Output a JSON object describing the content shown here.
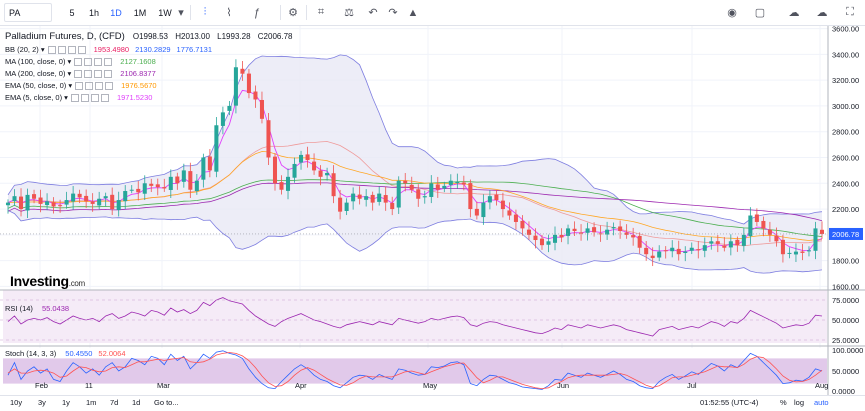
{
  "toolbar": {
    "symbol": "PA",
    "intervals": [
      "5",
      "1h",
      "1D",
      "1M",
      "1W"
    ],
    "active_interval": "1D"
  },
  "title": {
    "name": "Palladium Futures, D, (CFD)",
    "open": "O1998.53",
    "high": "H2013.00",
    "low": "L1993.28",
    "close": "C2006.78"
  },
  "indicators": [
    {
      "name": "BB (20, 2)",
      "values": [
        "1953.4980",
        "2130.2829",
        "1776.7131"
      ],
      "colors": [
        "#e91e63",
        "#2962ff",
        "#2962ff"
      ]
    },
    {
      "name": "MA (100, close, 0)",
      "values": [
        "2127.1608"
      ],
      "colors": [
        "#4caf50"
      ]
    },
    {
      "name": "MA (200, close, 0)",
      "values": [
        "2106.8377"
      ],
      "colors": [
        "#9c27b0"
      ]
    },
    {
      "name": "EMA (50, close, 0)",
      "values": [
        "1976.5670"
      ],
      "colors": [
        "#ff9800"
      ]
    },
    {
      "name": "EMA (5, close, 0)",
      "values": [
        "1971.5230"
      ],
      "colors": [
        "#e040fb"
      ]
    }
  ],
  "rsi": {
    "name": "RSI (14)",
    "value": "55.0438"
  },
  "stoch": {
    "name": "Stoch (14, 3, 3)",
    "values": [
      "50.4550",
      "52.0064"
    ]
  },
  "price_axis": {
    "ticks": [
      "3600.00",
      "3400.00",
      "3200.00",
      "3000.00",
      "2800.00",
      "2600.00",
      "2400.00",
      "2200.00",
      "2000.00",
      "1800.00",
      "1600.00"
    ],
    "current_price": "2006.78"
  },
  "rsi_axis": {
    "ticks": [
      "75.0000",
      "50.0000",
      "25.0000"
    ]
  },
  "stoch_axis": {
    "ticks": [
      "100.0000",
      "50.0000",
      "0.0000"
    ]
  },
  "time_axis": {
    "labels": [
      "Feb",
      "11",
      "Mar",
      "Apr",
      "May",
      "Jun",
      "Jul",
      "Aug"
    ]
  },
  "bottom_bar": {
    "ranges": [
      "10y",
      "3y",
      "1y",
      "1m",
      "7d",
      "1d",
      "Go to..."
    ],
    "clock": "01:52:55 (UTC-4)",
    "percent": "%",
    "log": "log",
    "auto": "auto"
  },
  "logo": {
    "text": "Investing",
    "suffix": ".com"
  },
  "colors": {
    "up": "#26a69a",
    "down": "#ef5350",
    "bb_fill": "#e8e8f5",
    "rsi_fill": "#f3e5f5",
    "accent": "#2962ff"
  },
  "chart_data": {
    "type": "candlestick",
    "price_range": [
      1580,
      3620
    ],
    "closes": [
      2250,
      2300,
      2200,
      2310,
      2280,
      2240,
      2260,
      2220,
      2230,
      2270,
      2320,
      2290,
      2260,
      2240,
      2280,
      2300,
      2200,
      2270,
      2340,
      2350,
      2330,
      2400,
      2380,
      2370,
      2360,
      2450,
      2400,
      2500,
      2350,
      2420,
      2600,
      2500,
      2850,
      2950,
      3000,
      3300,
      3250,
      3100,
      3050,
      2900,
      2600,
      2400,
      2350,
      2450,
      2550,
      2620,
      2580,
      2500,
      2450,
      2480,
      2300,
      2180,
      2250,
      2320,
      2280,
      2300,
      2250,
      2320,
      2250,
      2200,
      2420,
      2400,
      2350,
      2280,
      2300,
      2400,
      2350,
      2380,
      2420,
      2410,
      2390,
      2200,
      2150,
      2250,
      2300,
      2270,
      2200,
      2150,
      2100,
      2050,
      2000,
      1960,
      1920,
      1950,
      2000,
      1980,
      2050,
      2030,
      2010,
      2050,
      2020,
      2010,
      2040,
      2060,
      2030,
      2000,
      1980,
      1900,
      1850,
      1820,
      1870,
      1880,
      1900,
      1850,
      1870,
      1900,
      1880,
      1920,
      1950,
      1930,
      1900,
      1950,
      1920,
      2000,
      2150,
      2100,
      2050,
      2000,
      1950,
      1850,
      1860,
      1870,
      1860,
      1880,
      2050,
      2007
    ],
    "rsi": [
      48,
      55,
      45,
      50,
      52,
      50,
      53,
      48,
      45,
      50,
      55,
      52,
      50,
      52,
      48,
      55,
      58,
      52,
      55,
      60,
      58,
      55,
      62,
      60,
      56,
      65,
      60,
      63,
      58,
      62,
      72,
      68,
      75,
      78,
      74,
      72,
      70,
      62,
      55,
      50,
      45,
      42,
      48,
      52,
      55,
      58,
      54,
      50,
      48,
      45,
      42,
      40,
      44,
      46,
      48,
      46,
      44,
      48,
      46,
      44,
      52,
      50,
      48,
      46,
      48,
      52,
      50,
      52,
      54,
      55,
      53,
      44,
      42,
      46,
      48,
      47,
      44,
      42,
      40,
      38,
      36,
      34,
      33,
      36,
      40,
      38,
      44,
      42,
      40,
      44,
      42,
      40,
      42,
      44,
      42,
      38,
      36,
      34,
      32,
      30,
      38,
      40,
      42,
      38,
      40,
      42,
      40,
      44,
      48,
      46,
      42,
      48,
      46,
      52,
      62,
      58,
      54,
      50,
      46,
      40,
      42,
      44,
      43,
      46,
      56,
      55
    ],
    "stoch_k": [
      40,
      70,
      30,
      50,
      60,
      45,
      55,
      30,
      25,
      50,
      70,
      60,
      45,
      55,
      40,
      60,
      70,
      50,
      60,
      80,
      75,
      65,
      85,
      80,
      65,
      90,
      75,
      85,
      55,
      70,
      90,
      80,
      95,
      98,
      92,
      88,
      80,
      55,
      35,
      20,
      10,
      8,
      25,
      40,
      55,
      65,
      55,
      40,
      30,
      25,
      15,
      10,
      22,
      35,
      40,
      38,
      30,
      42,
      35,
      30,
      55,
      52,
      45,
      40,
      42,
      60,
      58,
      62,
      70,
      72,
      65,
      20,
      15,
      30,
      40,
      38,
      30,
      22,
      18,
      12,
      10,
      8,
      6,
      15,
      30,
      28,
      45,
      40,
      35,
      45,
      40,
      35,
      42,
      50,
      42,
      30,
      25,
      15,
      10,
      8,
      25,
      35,
      42,
      30,
      38,
      48,
      42,
      55,
      68,
      62,
      50,
      65,
      58,
      75,
      92,
      85,
      70,
      55,
      40,
      20,
      22,
      28,
      26,
      35,
      55,
      50
    ],
    "stoch_d": [
      45,
      55,
      45,
      45,
      50,
      52,
      50,
      45,
      35,
      38,
      50,
      60,
      58,
      52,
      48,
      50,
      58,
      60,
      58,
      65,
      72,
      72,
      75,
      78,
      75,
      78,
      80,
      82,
      72,
      70,
      72,
      78,
      88,
      92,
      94,
      92,
      86,
      75,
      58,
      38,
      22,
      13,
      15,
      25,
      40,
      52,
      58,
      52,
      42,
      32,
      24,
      17,
      16,
      22,
      32,
      38,
      36,
      36,
      36,
      36,
      42,
      48,
      50,
      46,
      42,
      48,
      54,
      60,
      64,
      68,
      69,
      52,
      34,
      22,
      28,
      36,
      36,
      30,
      24,
      18,
      14,
      10,
      8,
      10,
      18,
      25,
      34,
      38,
      40,
      40,
      40,
      40,
      40,
      42,
      44,
      40,
      32,
      24,
      16,
      11,
      15,
      24,
      34,
      36,
      36,
      40,
      44,
      48,
      55,
      62,
      60,
      60,
      58,
      66,
      78,
      84,
      82,
      70,
      55,
      38,
      28,
      24,
      25,
      30,
      40,
      52
    ],
    "month_labels": [
      "Feb",
      "11",
      "Mar",
      "Apr",
      "May",
      "Jun",
      "Jul",
      "Aug"
    ]
  }
}
